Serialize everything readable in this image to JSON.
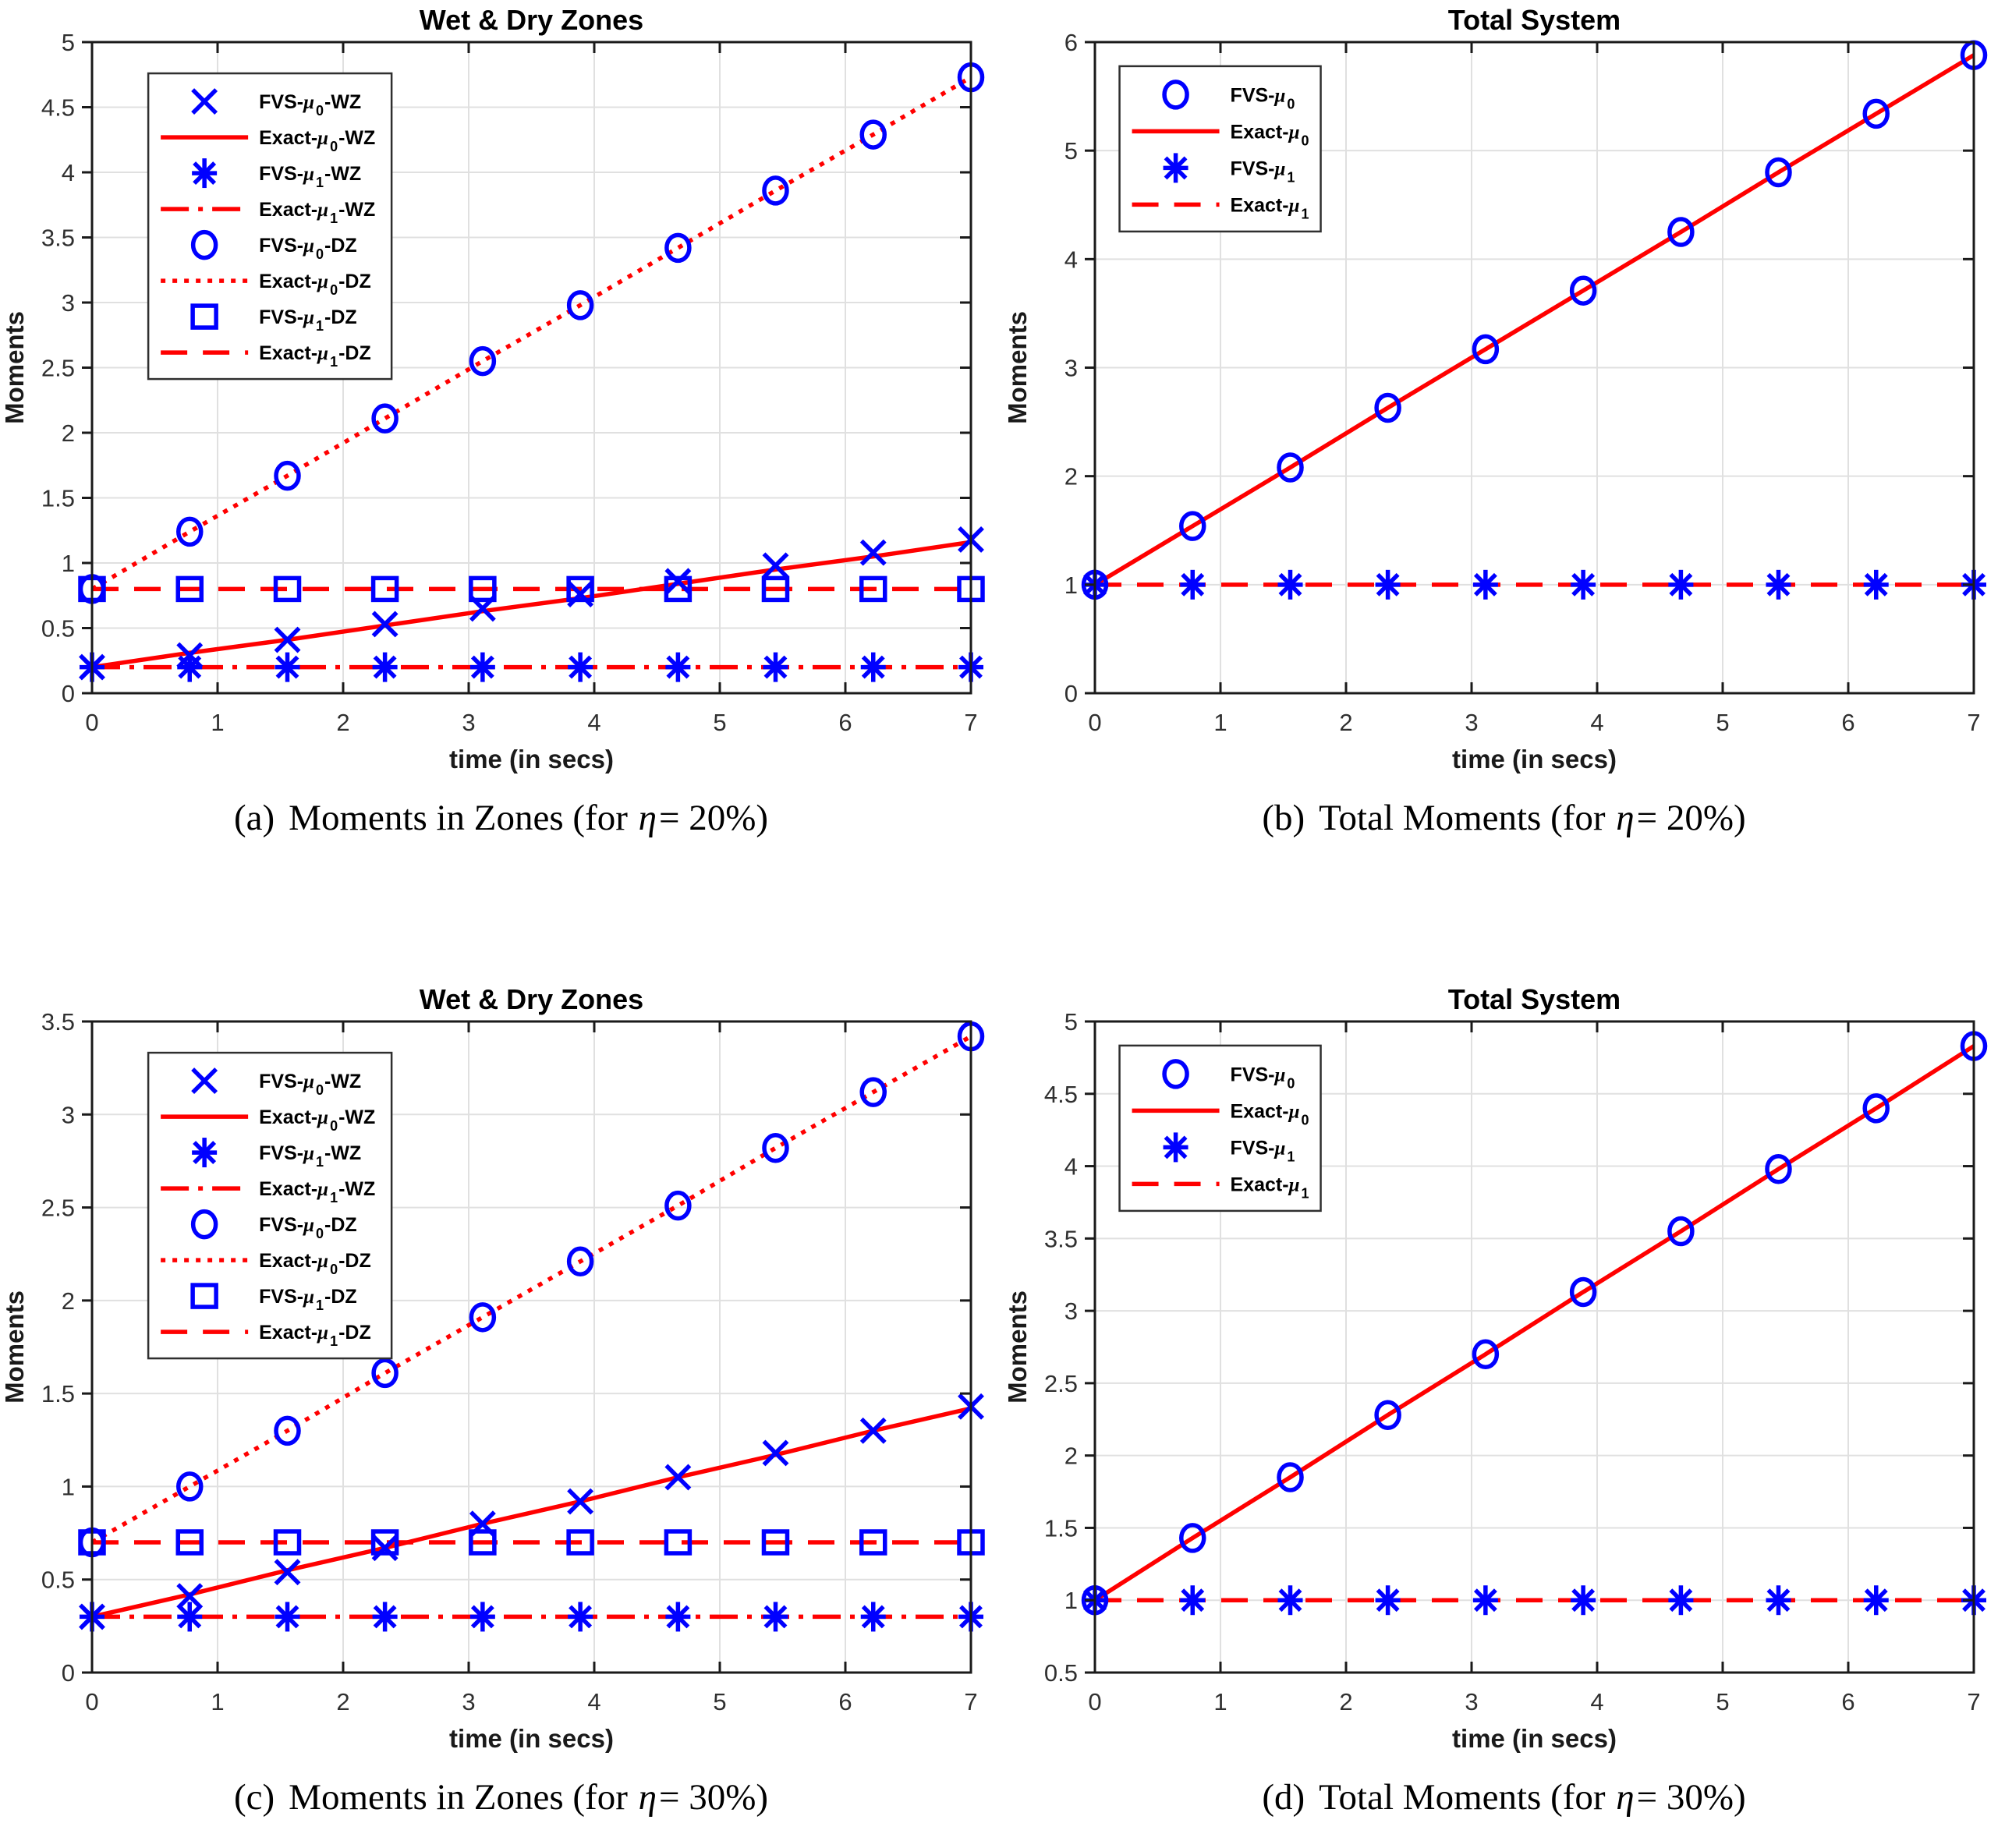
{
  "figure": {
    "colors": {
      "marker_blue": "#0000FF",
      "line_red": "#FF0000",
      "grid": "#E0E0E0",
      "axis": "#1A1A1A",
      "tick_label": "#303030",
      "title": "#000000",
      "legend_border": "#2F2F2F",
      "background": "#FFFFFF"
    }
  },
  "chart_data": [
    {
      "type": "line",
      "title": "Wet & Dry Zones",
      "xlabel": "time (in secs)",
      "ylabel": "Moments",
      "xlim": [
        0,
        7
      ],
      "ylim": [
        0,
        5
      ],
      "xticks": [
        0,
        1,
        2,
        3,
        4,
        5,
        6,
        7
      ],
      "xtick_labels": [
        "0",
        "1",
        "2",
        "3",
        "4",
        "5",
        "6",
        "7"
      ],
      "yticks": [
        0,
        0.5,
        1,
        1.5,
        2,
        2.5,
        3,
        3.5,
        4,
        4.5,
        5
      ],
      "ytick_labels": [
        "0",
        "0.5",
        "1",
        "1.5",
        "2",
        "2.5",
        "3",
        "3.5",
        "4",
        "4.5",
        "5"
      ],
      "grid": true,
      "legend_position": "top-left",
      "x": [
        0,
        0.778,
        1.556,
        2.333,
        3.111,
        3.889,
        4.667,
        5.444,
        6.222,
        7
      ],
      "series": [
        {
          "name": "FVS-mu0-WZ",
          "kind": "marker",
          "marker": "x",
          "color": "blue",
          "legend": {
            "pre": "FVS-",
            "mu": "μ",
            "sub": "0",
            "post": "-WZ"
          },
          "values": [
            0.2,
            0.29,
            0.41,
            0.53,
            0.65,
            0.76,
            0.86,
            0.98,
            1.08,
            1.18
          ]
        },
        {
          "name": "Exact-mu0-WZ",
          "kind": "line",
          "dash": "solid",
          "color": "red",
          "legend": {
            "pre": "Exact-",
            "mu": "μ",
            "sub": "0",
            "post": "-WZ"
          },
          "values": [
            0.2,
            0.31,
            0.41,
            0.52,
            0.63,
            0.73,
            0.84,
            0.95,
            1.05,
            1.16
          ]
        },
        {
          "name": "FVS-mu1-WZ",
          "kind": "marker",
          "marker": "asterisk",
          "color": "blue",
          "legend": {
            "pre": "FVS-",
            "mu": "μ",
            "sub": "1",
            "post": "-WZ"
          },
          "values": [
            0.2,
            0.2,
            0.2,
            0.2,
            0.2,
            0.2,
            0.2,
            0.2,
            0.2,
            0.2
          ]
        },
        {
          "name": "Exact-mu1-WZ",
          "kind": "line",
          "dash": "dashdot",
          "color": "red",
          "legend": {
            "pre": "Exact-",
            "mu": "μ",
            "sub": "1",
            "post": "-WZ"
          },
          "values": [
            0.2,
            0.2,
            0.2,
            0.2,
            0.2,
            0.2,
            0.2,
            0.2,
            0.2,
            0.2
          ]
        },
        {
          "name": "FVS-mu0-DZ",
          "kind": "marker",
          "marker": "circle",
          "color": "blue",
          "legend": {
            "pre": "FVS-",
            "mu": "μ",
            "sub": "0",
            "post": "-DZ"
          },
          "values": [
            0.8,
            1.24,
            1.67,
            2.11,
            2.55,
            2.98,
            3.42,
            3.86,
            4.29,
            4.73
          ]
        },
        {
          "name": "Exact-mu0-DZ",
          "kind": "line",
          "dash": "dotted",
          "color": "red",
          "legend": {
            "pre": "Exact-",
            "mu": "μ",
            "sub": "0",
            "post": "-DZ"
          },
          "values": [
            0.8,
            1.24,
            1.67,
            2.11,
            2.55,
            2.98,
            3.42,
            3.86,
            4.29,
            4.73
          ]
        },
        {
          "name": "FVS-mu1-DZ",
          "kind": "marker",
          "marker": "square",
          "color": "blue",
          "legend": {
            "pre": "FVS-",
            "mu": "μ",
            "sub": "1",
            "post": "-DZ"
          },
          "values": [
            0.8,
            0.8,
            0.8,
            0.8,
            0.8,
            0.8,
            0.8,
            0.8,
            0.8,
            0.8
          ]
        },
        {
          "name": "Exact-mu1-DZ",
          "kind": "line",
          "dash": "dashed",
          "color": "red",
          "legend": {
            "pre": "Exact-",
            "mu": "μ",
            "sub": "1",
            "post": "-DZ"
          },
          "values": [
            0.8,
            0.8,
            0.8,
            0.8,
            0.8,
            0.8,
            0.8,
            0.8,
            0.8,
            0.8
          ]
        }
      ],
      "caption": {
        "tag": "(a)",
        "pre": "Moments in Zones (for ",
        "eta": "η",
        "post": "= 20%)"
      }
    },
    {
      "type": "line",
      "title": "Total System",
      "xlabel": "time (in secs)",
      "ylabel": "Moments",
      "xlim": [
        0,
        7
      ],
      "ylim": [
        0,
        6
      ],
      "xticks": [
        0,
        1,
        2,
        3,
        4,
        5,
        6,
        7
      ],
      "xtick_labels": [
        "0",
        "1",
        "2",
        "3",
        "4",
        "5",
        "6",
        "7"
      ],
      "yticks": [
        0,
        1,
        2,
        3,
        4,
        5,
        6
      ],
      "ytick_labels": [
        "0",
        "1",
        "2",
        "3",
        "4",
        "5",
        "6"
      ],
      "grid": true,
      "legend_position": "top-left",
      "x": [
        0,
        0.778,
        1.556,
        2.333,
        3.111,
        3.889,
        4.667,
        5.444,
        6.222,
        7
      ],
      "series": [
        {
          "name": "FVS-mu0",
          "kind": "marker",
          "marker": "circle",
          "color": "blue",
          "legend": {
            "pre": "FVS-",
            "mu": "μ",
            "sub": "0",
            "post": ""
          },
          "values": [
            1.0,
            1.54,
            2.08,
            2.63,
            3.17,
            3.71,
            4.25,
            4.8,
            5.34,
            5.88
          ]
        },
        {
          "name": "Exact-mu0",
          "kind": "line",
          "dash": "solid",
          "color": "red",
          "legend": {
            "pre": "Exact-",
            "mu": "μ",
            "sub": "0",
            "post": ""
          },
          "values": [
            1.0,
            1.54,
            2.08,
            2.63,
            3.17,
            3.71,
            4.25,
            4.8,
            5.34,
            5.88
          ]
        },
        {
          "name": "FVS-mu1",
          "kind": "marker",
          "marker": "asterisk",
          "color": "blue",
          "legend": {
            "pre": "FVS-",
            "mu": "μ",
            "sub": "1",
            "post": ""
          },
          "values": [
            1,
            1,
            1,
            1,
            1,
            1,
            1,
            1,
            1,
            1
          ]
        },
        {
          "name": "Exact-mu1",
          "kind": "line",
          "dash": "dashed",
          "color": "red",
          "legend": {
            "pre": "Exact-",
            "mu": "μ",
            "sub": "1",
            "post": ""
          },
          "values": [
            1,
            1,
            1,
            1,
            1,
            1,
            1,
            1,
            1,
            1
          ]
        }
      ],
      "caption": {
        "tag": "(b)",
        "pre": "Total Moments (for ",
        "eta": "η",
        "post": "= 20%)"
      }
    },
    {
      "type": "line",
      "title": "Wet & Dry Zones",
      "xlabel": "time (in secs)",
      "ylabel": "Moments",
      "xlim": [
        0,
        7
      ],
      "ylim": [
        0,
        3.5
      ],
      "xticks": [
        0,
        1,
        2,
        3,
        4,
        5,
        6,
        7
      ],
      "xtick_labels": [
        "0",
        "1",
        "2",
        "3",
        "4",
        "5",
        "6",
        "7"
      ],
      "yticks": [
        0,
        0.5,
        1,
        1.5,
        2,
        2.5,
        3,
        3.5
      ],
      "ytick_labels": [
        "0",
        "0.5",
        "1",
        "1.5",
        "2",
        "2.5",
        "3",
        "3.5"
      ],
      "grid": true,
      "legend_position": "top-left",
      "x": [
        0,
        0.778,
        1.556,
        2.333,
        3.111,
        3.889,
        4.667,
        5.444,
        6.222,
        7
      ],
      "series": [
        {
          "name": "FVS-mu0-WZ",
          "kind": "marker",
          "marker": "x",
          "color": "blue",
          "legend": {
            "pre": "FVS-",
            "mu": "μ",
            "sub": "0",
            "post": "-WZ"
          },
          "values": [
            0.3,
            0.41,
            0.54,
            0.67,
            0.8,
            0.92,
            1.05,
            1.18,
            1.3,
            1.43
          ]
        },
        {
          "name": "Exact-mu0-WZ",
          "kind": "line",
          "dash": "solid",
          "color": "red",
          "legend": {
            "pre": "Exact-",
            "mu": "μ",
            "sub": "0",
            "post": "-WZ"
          },
          "values": [
            0.3,
            0.42,
            0.55,
            0.67,
            0.8,
            0.92,
            1.05,
            1.17,
            1.3,
            1.42
          ]
        },
        {
          "name": "FVS-mu1-WZ",
          "kind": "marker",
          "marker": "asterisk",
          "color": "blue",
          "legend": {
            "pre": "FVS-",
            "mu": "μ",
            "sub": "1",
            "post": "-WZ"
          },
          "values": [
            0.3,
            0.3,
            0.3,
            0.3,
            0.3,
            0.3,
            0.3,
            0.3,
            0.3,
            0.3
          ]
        },
        {
          "name": "Exact-mu1-WZ",
          "kind": "line",
          "dash": "dashdot",
          "color": "red",
          "legend": {
            "pre": "Exact-",
            "mu": "μ",
            "sub": "1",
            "post": "-WZ"
          },
          "values": [
            0.3,
            0.3,
            0.3,
            0.3,
            0.3,
            0.3,
            0.3,
            0.3,
            0.3,
            0.3
          ]
        },
        {
          "name": "FVS-mu0-DZ",
          "kind": "marker",
          "marker": "circle",
          "color": "blue",
          "legend": {
            "pre": "FVS-",
            "mu": "μ",
            "sub": "0",
            "post": "-DZ"
          },
          "values": [
            0.7,
            1.0,
            1.3,
            1.61,
            1.91,
            2.21,
            2.51,
            2.82,
            3.12,
            3.42
          ]
        },
        {
          "name": "Exact-mu0-DZ",
          "kind": "line",
          "dash": "dotted",
          "color": "red",
          "legend": {
            "pre": "Exact-",
            "mu": "μ",
            "sub": "0",
            "post": "-DZ"
          },
          "values": [
            0.7,
            1.0,
            1.3,
            1.61,
            1.91,
            2.21,
            2.51,
            2.82,
            3.12,
            3.42
          ]
        },
        {
          "name": "FVS-mu1-DZ",
          "kind": "marker",
          "marker": "square",
          "color": "blue",
          "legend": {
            "pre": "FVS-",
            "mu": "μ",
            "sub": "1",
            "post": "-DZ"
          },
          "values": [
            0.7,
            0.7,
            0.7,
            0.7,
            0.7,
            0.7,
            0.7,
            0.7,
            0.7,
            0.7
          ]
        },
        {
          "name": "Exact-mu1-DZ",
          "kind": "line",
          "dash": "dashed",
          "color": "red",
          "legend": {
            "pre": "Exact-",
            "mu": "μ",
            "sub": "1",
            "post": "-DZ"
          },
          "values": [
            0.7,
            0.7,
            0.7,
            0.7,
            0.7,
            0.7,
            0.7,
            0.7,
            0.7,
            0.7
          ]
        }
      ],
      "caption": {
        "tag": "(c)",
        "pre": "Moments in Zones (for ",
        "eta": "η",
        "post": "= 30%)"
      }
    },
    {
      "type": "line",
      "title": "Total System",
      "xlabel": "time (in secs)",
      "ylabel": "Moments",
      "xlim": [
        0,
        7
      ],
      "ylim": [
        0.5,
        5
      ],
      "xticks": [
        0,
        1,
        2,
        3,
        4,
        5,
        6,
        7
      ],
      "xtick_labels": [
        "0",
        "1",
        "2",
        "3",
        "4",
        "5",
        "6",
        "7"
      ],
      "yticks": [
        0.5,
        1,
        1.5,
        2,
        2.5,
        3,
        3.5,
        4,
        4.5,
        5
      ],
      "ytick_labels": [
        "0.5",
        "1",
        "1.5",
        "2",
        "2.5",
        "3",
        "3.5",
        "4",
        "4.5",
        "5"
      ],
      "grid": true,
      "legend_position": "top-left",
      "x": [
        0,
        0.778,
        1.556,
        2.333,
        3.111,
        3.889,
        4.667,
        5.444,
        6.222,
        7
      ],
      "series": [
        {
          "name": "FVS-mu0",
          "kind": "marker",
          "marker": "circle",
          "color": "blue",
          "legend": {
            "pre": "FVS-",
            "mu": "μ",
            "sub": "0",
            "post": ""
          },
          "values": [
            1.0,
            1.43,
            1.85,
            2.28,
            2.7,
            3.13,
            3.55,
            3.98,
            4.4,
            4.83
          ]
        },
        {
          "name": "Exact-mu0",
          "kind": "line",
          "dash": "solid",
          "color": "red",
          "legend": {
            "pre": "Exact-",
            "mu": "μ",
            "sub": "0",
            "post": ""
          },
          "values": [
            1.0,
            1.43,
            1.85,
            2.28,
            2.7,
            3.13,
            3.55,
            3.98,
            4.4,
            4.83
          ]
        },
        {
          "name": "FVS-mu1",
          "kind": "marker",
          "marker": "asterisk",
          "color": "blue",
          "legend": {
            "pre": "FVS-",
            "mu": "μ",
            "sub": "1",
            "post": ""
          },
          "values": [
            1,
            1,
            1,
            1,
            1,
            1,
            1,
            1,
            1,
            1
          ]
        },
        {
          "name": "Exact-mu1",
          "kind": "line",
          "dash": "dashed",
          "color": "red",
          "legend": {
            "pre": "Exact-",
            "mu": "μ",
            "sub": "1",
            "post": ""
          },
          "values": [
            1,
            1,
            1,
            1,
            1,
            1,
            1,
            1,
            1,
            1
          ]
        }
      ],
      "caption": {
        "tag": "(d)",
        "pre": "Total Moments (for ",
        "eta": "η",
        "post": "= 30%)"
      }
    }
  ]
}
